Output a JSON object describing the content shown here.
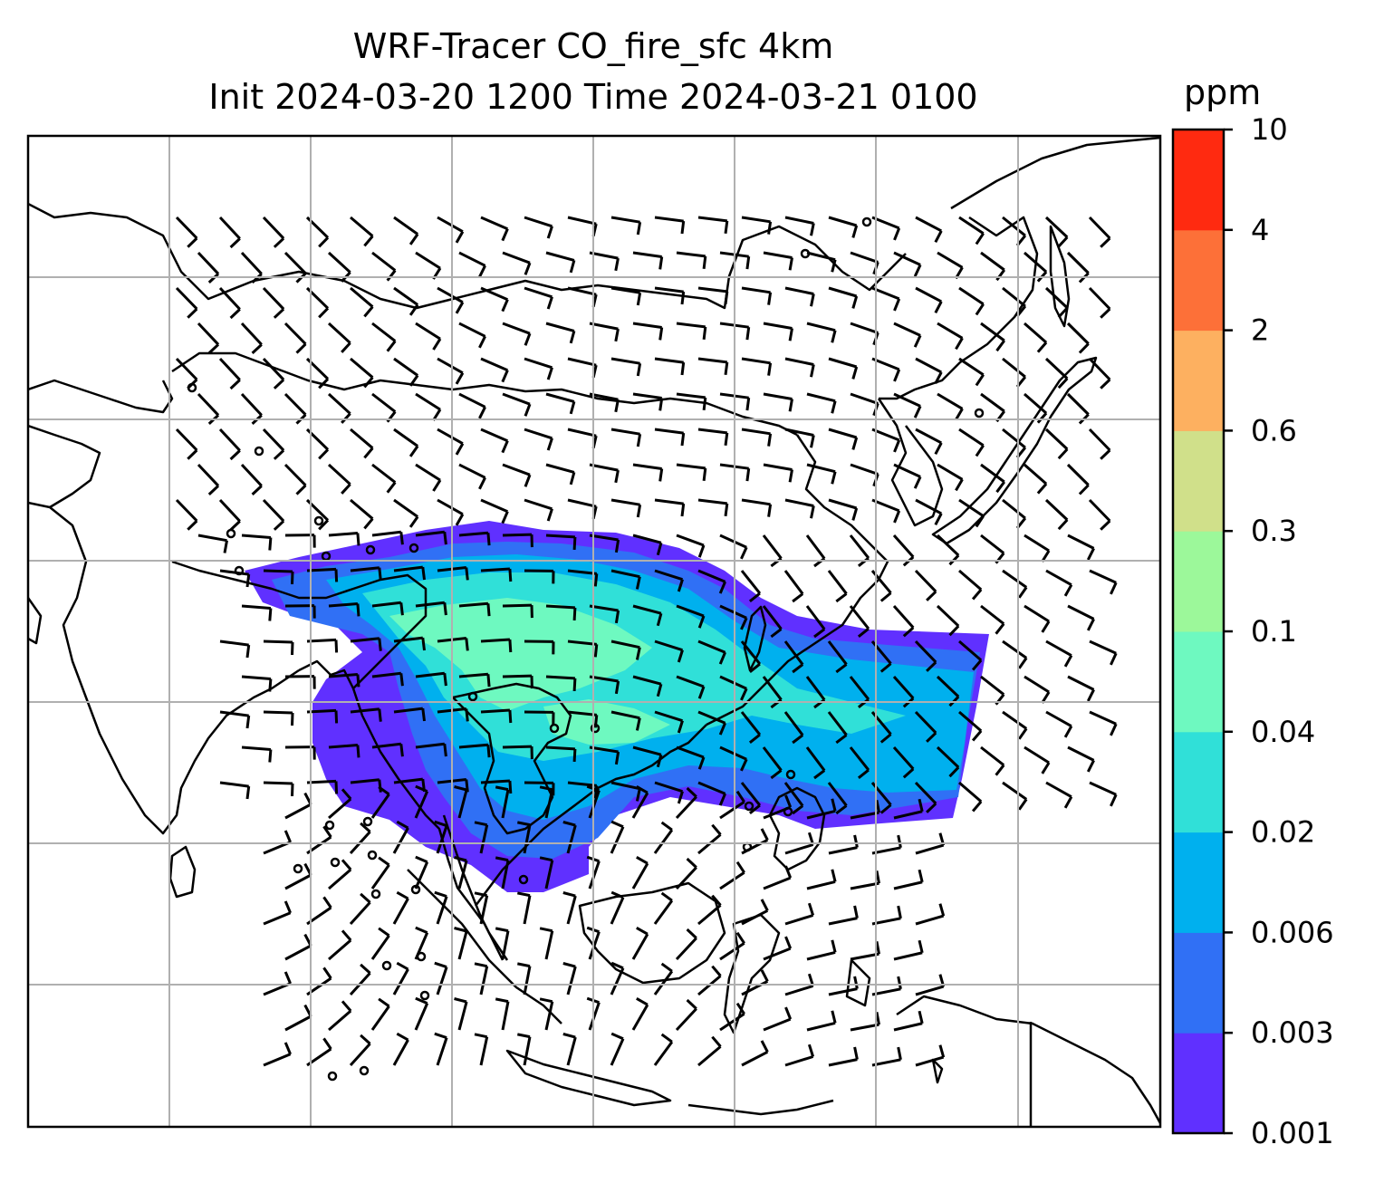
{
  "title": {
    "line1": "WRF-Tracer CO_fire_sfc 4km",
    "line2": "Init 2024-03-20 1200 Time 2024-03-21 0100"
  },
  "colorbar": {
    "unit": "ppm",
    "levels": [
      "0.001",
      "0.003",
      "0.006",
      "0.02",
      "0.04",
      "0.1",
      "0.3",
      "0.6",
      "2",
      "4",
      "10"
    ],
    "colors": [
      "#6030ff",
      "#3070f5",
      "#00b0ee",
      "#30e0d8",
      "#6ef9c0",
      "#9cf89a",
      "#d0e08a",
      "#fdb060",
      "#fd7038",
      "#ff2a10"
    ]
  },
  "map": {
    "gridlines": true,
    "grid_color": "#b0b0b0",
    "coastline_color": "#000000",
    "overlay": "wind barbs"
  }
}
